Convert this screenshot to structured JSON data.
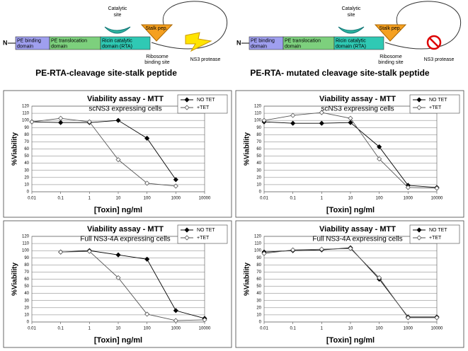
{
  "diagrams": [
    {
      "n_terminus": "N",
      "pe_binding": [
        "PE binding",
        "domain"
      ],
      "pe_translocation": [
        "PE translocation",
        "domain"
      ],
      "ricin": [
        "Ricin catalytic",
        "domain (RTA)"
      ],
      "catalytic_site": [
        "Catalytic",
        "site"
      ],
      "stalk": "Stalk pep.",
      "ribosome": [
        "Ribosome",
        "binding site"
      ],
      "protease": "NS3 protease",
      "caption": "PE-RTA-cleavage site-stalk peptide"
    },
    {
      "n_terminus": "N",
      "pe_binding": [
        "PE binding",
        "domain"
      ],
      "pe_translocation": [
        "PE translocation",
        "domain"
      ],
      "ricin": [
        "Ricin catalytic",
        "domain (RTA)"
      ],
      "catalytic_site": [
        "Catalytic",
        "site"
      ],
      "stalk": "Stalk pep.",
      "ribosome": [
        "Ribosome",
        "binding site"
      ],
      "protease": "NS3 protease",
      "caption": "PE-RTA- mutated cleavage site-stalk peptide"
    }
  ],
  "chart_data": [
    {
      "type": "line",
      "title": "Viability assay - MTT",
      "subtitle": "scNS3 expressing cells",
      "x_label": "[Toxin] ng/ml",
      "y_label": "%Viability",
      "log_x": true,
      "xlim": [
        0.01,
        10000
      ],
      "xticks": [
        0.01,
        0.1,
        1,
        10,
        100,
        1000,
        10000
      ],
      "ylim": [
        0,
        120
      ],
      "yticks": [
        0,
        10,
        20,
        30,
        40,
        50,
        60,
        70,
        80,
        90,
        100,
        110,
        120
      ],
      "grid": true,
      "legend": "upper right",
      "series": [
        {
          "name": "NO TET",
          "color": "#000000",
          "marker_fill": "#000000",
          "x": [
            0.01,
            0.1,
            1,
            10,
            100,
            1000
          ],
          "values": [
            98,
            97,
            97,
            100,
            75,
            17
          ]
        },
        {
          "name": "+TET",
          "color": "#555555",
          "marker_fill": "#ffffff",
          "x": [
            0.01,
            0.1,
            1,
            10,
            100,
            1000
          ],
          "values": [
            98,
            103,
            98,
            45,
            12,
            8
          ]
        }
      ]
    },
    {
      "type": "line",
      "title": "Viability assay - MTT",
      "subtitle": "scNS3 expressing cells",
      "x_label": "[Toxin] ng/ml",
      "y_label": "%Viability",
      "log_x": true,
      "xlim": [
        0.01,
        10000
      ],
      "xticks": [
        0.01,
        0.1,
        1,
        10,
        100,
        1000,
        10000
      ],
      "ylim": [
        0,
        120
      ],
      "yticks": [
        0,
        10,
        20,
        30,
        40,
        50,
        60,
        70,
        80,
        90,
        100,
        110,
        120
      ],
      "grid": true,
      "legend": "upper right",
      "series": [
        {
          "name": "NO TET",
          "color": "#000000",
          "marker_fill": "#000000",
          "x": [
            0.01,
            0.1,
            1,
            10,
            100,
            1000,
            10000
          ],
          "values": [
            98,
            96,
            96,
            97,
            63,
            9,
            6
          ]
        },
        {
          "name": "+TET",
          "color": "#555555",
          "marker_fill": "#ffffff",
          "x": [
            0.01,
            0.1,
            1,
            10,
            100,
            1000,
            10000
          ],
          "values": [
            100,
            107,
            111,
            103,
            46,
            6,
            5
          ]
        }
      ]
    },
    {
      "type": "line",
      "title": "Viability assay - MTT",
      "subtitle": "Full NS3-4A expressing cells",
      "x_label": "[Toxin] ng/ml",
      "y_label": "%Viability",
      "log_x": true,
      "xlim": [
        0.01,
        10000
      ],
      "xticks": [
        0.01,
        0.1,
        1,
        10,
        100,
        1000,
        10000
      ],
      "ylim": [
        0,
        120
      ],
      "yticks": [
        0,
        10,
        20,
        30,
        40,
        50,
        60,
        70,
        80,
        90,
        100,
        110,
        120
      ],
      "grid": true,
      "legend": "upper right",
      "series": [
        {
          "name": "NO TET",
          "color": "#000000",
          "marker_fill": "#000000",
          "x": [
            0.1,
            1,
            10,
            100,
            1000,
            10000
          ],
          "values": [
            98,
            100,
            94,
            88,
            16,
            5
          ]
        },
        {
          "name": "+TET",
          "color": "#555555",
          "marker_fill": "#ffffff",
          "x": [
            0.1,
            1,
            10,
            100,
            1000,
            10000
          ],
          "values": [
            98,
            99,
            62,
            11,
            2,
            3
          ]
        }
      ]
    },
    {
      "type": "line",
      "title": "Viability assay - MTT",
      "subtitle": "Full NS3-4A expressing cells",
      "x_label": "[Toxin] ng/ml",
      "y_label": "%Viability",
      "log_x": true,
      "xlim": [
        0.01,
        10000
      ],
      "xticks": [
        0.01,
        0.1,
        1,
        10,
        100,
        1000,
        10000
      ],
      "ylim": [
        0,
        120
      ],
      "yticks": [
        0,
        10,
        20,
        30,
        40,
        50,
        60,
        70,
        80,
        90,
        100,
        110,
        120
      ],
      "grid": true,
      "legend": "upper right",
      "series": [
        {
          "name": "NO TET",
          "color": "#000000",
          "marker_fill": "#000000",
          "x": [
            0.01,
            0.1,
            1,
            10,
            100,
            1000,
            10000
          ],
          "values": [
            98,
            100,
            101,
            104,
            60,
            7,
            7
          ]
        },
        {
          "name": "+TET",
          "color": "#555555",
          "marker_fill": "#ffffff",
          "x": [
            0.01,
            0.1,
            1,
            10,
            100,
            1000,
            10000
          ],
          "values": [
            96,
            101,
            102,
            103,
            62,
            6,
            6
          ]
        }
      ]
    }
  ]
}
